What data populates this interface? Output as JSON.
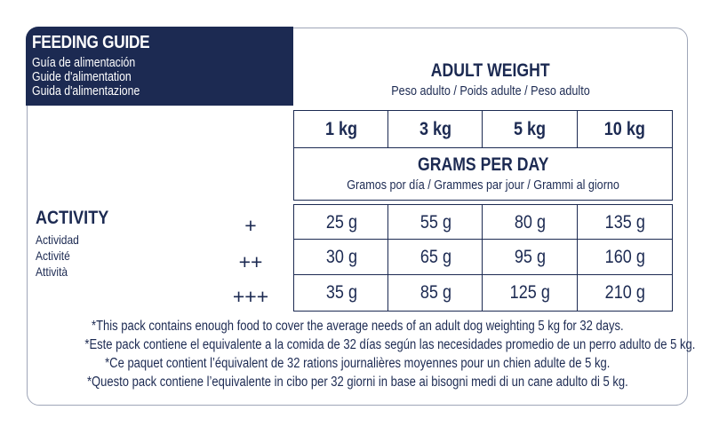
{
  "header": {
    "title": "FEEDING GUIDE",
    "subtitles": [
      "Guía de alimentación",
      "Guide d'alimentation",
      "Guida d'alimentazione"
    ]
  },
  "weight_header": {
    "title": "ADULT WEIGHT",
    "subtitle": "Peso adulto / Poids adulte / Peso adulto"
  },
  "weights": [
    "1 kg",
    "3 kg",
    "5 kg",
    "10 kg"
  ],
  "grams_header": {
    "title": "GRAMS PER DAY",
    "subtitle": "Gramos por día / Grammes par jour / Grammi al giorno"
  },
  "activity": {
    "title": "ACTIVITY",
    "subtitles": [
      "Actividad",
      "Activité",
      "Attività"
    ]
  },
  "rows": [
    {
      "level": "+",
      "values": [
        "25 g",
        "55 g",
        "80 g",
        "135 g"
      ]
    },
    {
      "level": "++",
      "values": [
        "30 g",
        "65 g",
        "95 g",
        "160 g"
      ]
    },
    {
      "level": "+++",
      "values": [
        "35 g",
        "85 g",
        "125 g",
        "210 g"
      ]
    }
  ],
  "notes": [
    "*This pack contains enough food to cover the average needs of an adult dog weighting 5 kg for 32 days.",
    "*Este pack contiene el equivalente a la comida de 32 días según las necesidades promedio de un perro adulto de 5 kg.",
    "*Ce paquet contient l’équivalent de 32 rations journalières moyennes pour un chien adulte de 5 kg.",
    "*Questo pack contiene l’equivalente in cibo per 32 giorni in base ai bisogni medi di un cane adulto di 5 kg."
  ]
}
